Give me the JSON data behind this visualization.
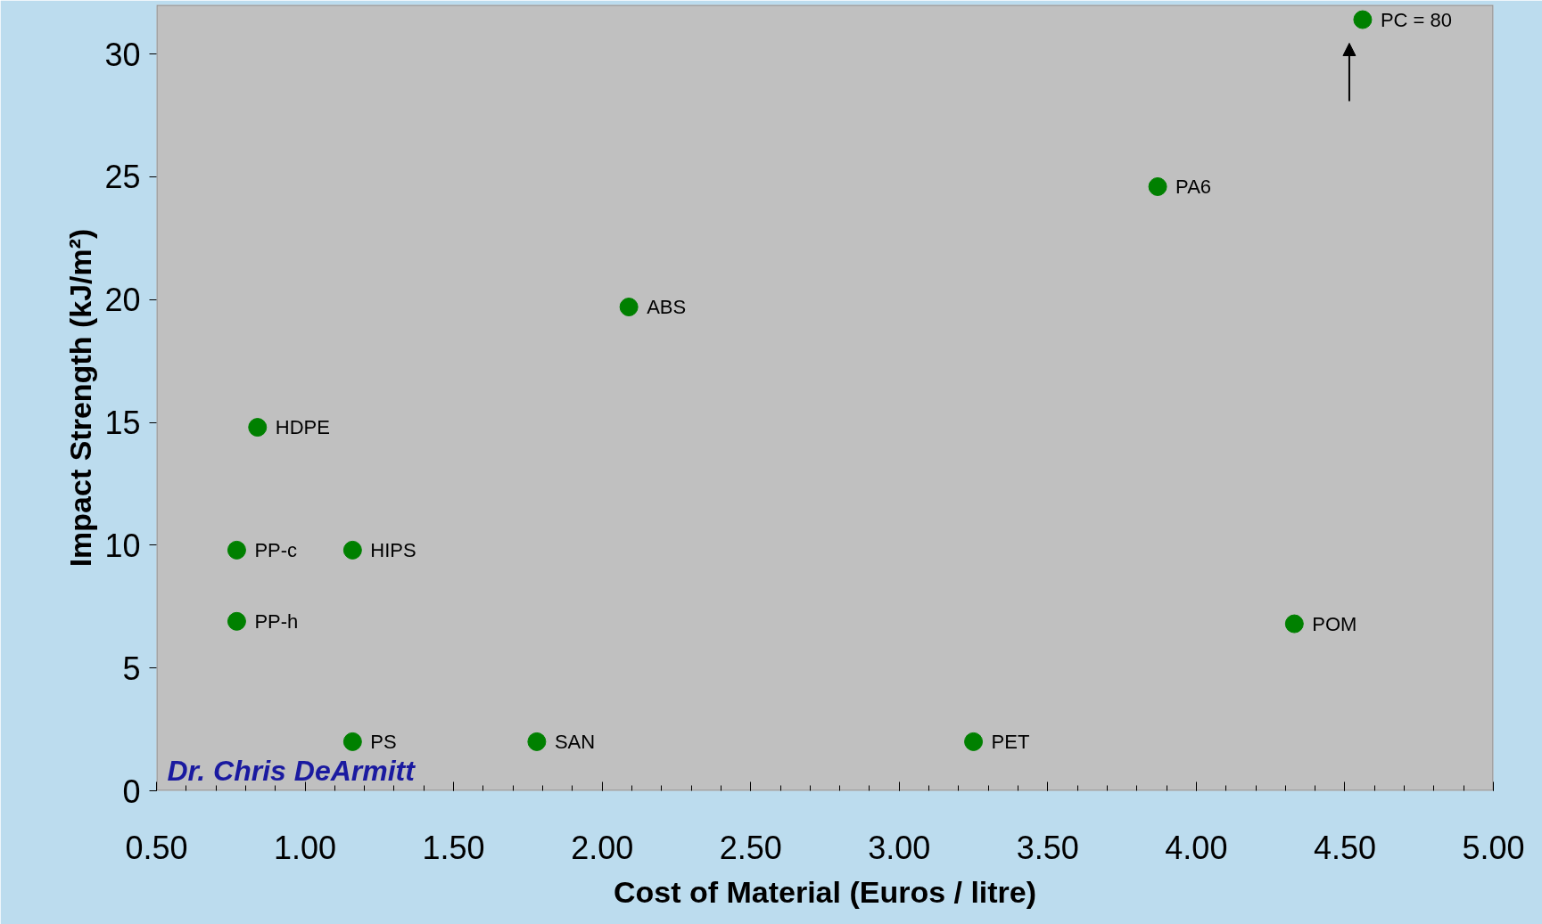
{
  "chart_data": {
    "type": "scatter",
    "xlabel": "Cost of Material (Euros / litre)",
    "ylabel": "Impact Strength (kJ/m²)",
    "x": [
      0.77,
      0.77,
      0.84,
      1.16,
      1.16,
      1.78,
      2.09,
      3.25,
      3.87,
      4.33,
      4.56
    ],
    "series": [
      {
        "color": "#008000",
        "values": [
          9.8,
          6.9,
          14.8,
          9.8,
          2.0,
          2.0,
          19.7,
          2.0,
          24.6,
          6.8,
          31.4
        ]
      }
    ],
    "marker": "circle",
    "xlim": [
      0.5,
      5.0
    ],
    "xticks": [
      {
        "value": 0.5,
        "label": "0.50"
      },
      {
        "value": 1.0,
        "label": "1.00"
      },
      {
        "value": 1.5,
        "label": "1.50"
      },
      {
        "value": 2.0,
        "label": "2.00"
      },
      {
        "value": 2.5,
        "label": "2.50"
      },
      {
        "value": 3.0,
        "label": "3.00"
      },
      {
        "value": 3.5,
        "label": "3.50"
      },
      {
        "value": 4.0,
        "label": "4.00"
      },
      {
        "value": 4.5,
        "label": "4.50"
      },
      {
        "value": 5.0,
        "label": "5.00"
      }
    ],
    "ylim": [
      0,
      32
    ],
    "yticks": [
      0,
      5,
      10,
      15,
      20,
      25,
      30
    ],
    "annotations": [
      {
        "text": "PP-c",
        "x": 0.77,
        "y": 9.8
      },
      {
        "text": "PP-h",
        "x": 0.77,
        "y": 6.9
      },
      {
        "text": "HDPE",
        "x": 0.84,
        "y": 14.8
      },
      {
        "text": "HIPS",
        "x": 1.16,
        "y": 9.8
      },
      {
        "text": "PS",
        "x": 1.16,
        "y": 2.0
      },
      {
        "text": "SAN",
        "x": 1.78,
        "y": 2.0
      },
      {
        "text": "ABS",
        "x": 2.09,
        "y": 19.7
      },
      {
        "text": "PET",
        "x": 3.25,
        "y": 2.0
      },
      {
        "text": "PA6",
        "x": 3.87,
        "y": 24.6
      },
      {
        "text": "POM",
        "x": 4.33,
        "y": 6.8
      },
      {
        "text": "PC = 80",
        "x": 4.56,
        "y": 31.4
      },
      "Dr. Chris DeArmitt"
    ]
  }
}
